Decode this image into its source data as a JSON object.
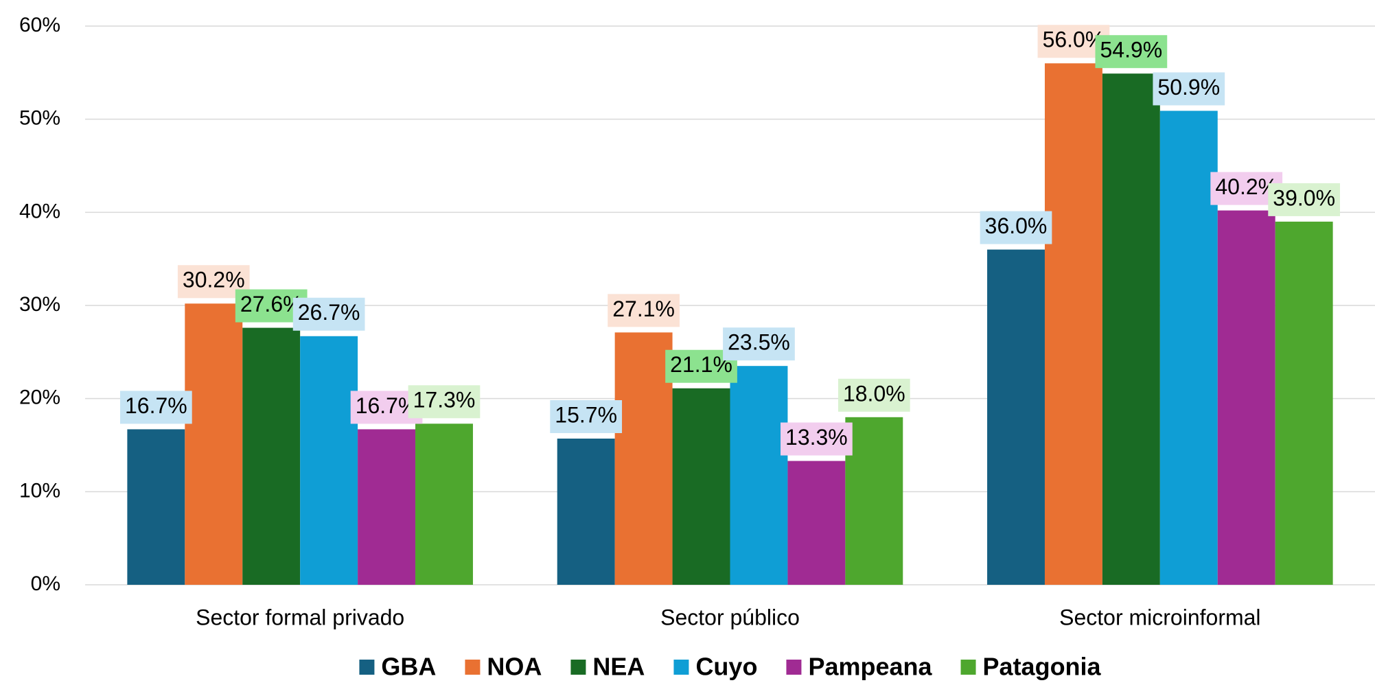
{
  "chart_data": {
    "type": "bar",
    "categories": [
      "Sector formal privado",
      "Sector público",
      "Sector microinformal"
    ],
    "series": [
      {
        "name": "GBA",
        "color": "#156082",
        "label_color": "#c6e4f4",
        "values": [
          16.7,
          15.7,
          36.0
        ],
        "value_labels": [
          "16.7%",
          "15.7%",
          "36.0%"
        ]
      },
      {
        "name": "NOA",
        "color": "#e97132",
        "label_color": "#fbe2d5",
        "values": [
          30.2,
          27.1,
          56.0
        ],
        "value_labels": [
          "30.2%",
          "27.1%",
          "56.0%"
        ]
      },
      {
        "name": "NEA",
        "color": "#196b24",
        "label_color": "#8ce28f",
        "values": [
          27.6,
          21.1,
          54.9
        ],
        "value_labels": [
          "27.6%",
          "21.1%",
          "54.9%"
        ]
      },
      {
        "name": "Cuyo",
        "color": "#0f9ed5",
        "label_color": "#c6e4f4",
        "values": [
          26.7,
          23.5,
          50.9
        ],
        "value_labels": [
          "26.7%",
          "23.5%",
          "50.9%"
        ]
      },
      {
        "name": "Pampeana",
        "color": "#a02b93",
        "label_color": "#f2cdee",
        "values": [
          16.7,
          13.3,
          40.2
        ],
        "value_labels": [
          "16.7%",
          "13.3%",
          "40.2%"
        ]
      },
      {
        "name": "Patagonia",
        "color": "#4ea72e",
        "label_color": "#d9f2d0",
        "values": [
          17.3,
          18.0,
          39.0
        ],
        "value_labels": [
          "17.3%",
          "18.0%",
          "39.0%"
        ]
      }
    ],
    "ylim": [
      0,
      60
    ],
    "yticks": [
      {
        "value": 0,
        "label": "0%"
      },
      {
        "value": 10,
        "label": "10%"
      },
      {
        "value": 20,
        "label": "20%"
      },
      {
        "value": 30,
        "label": "30%"
      },
      {
        "value": 40,
        "label": "40%"
      },
      {
        "value": 50,
        "label": "50%"
      },
      {
        "value": 60,
        "label": "60%"
      }
    ],
    "grid": true,
    "legend": "bottom"
  }
}
